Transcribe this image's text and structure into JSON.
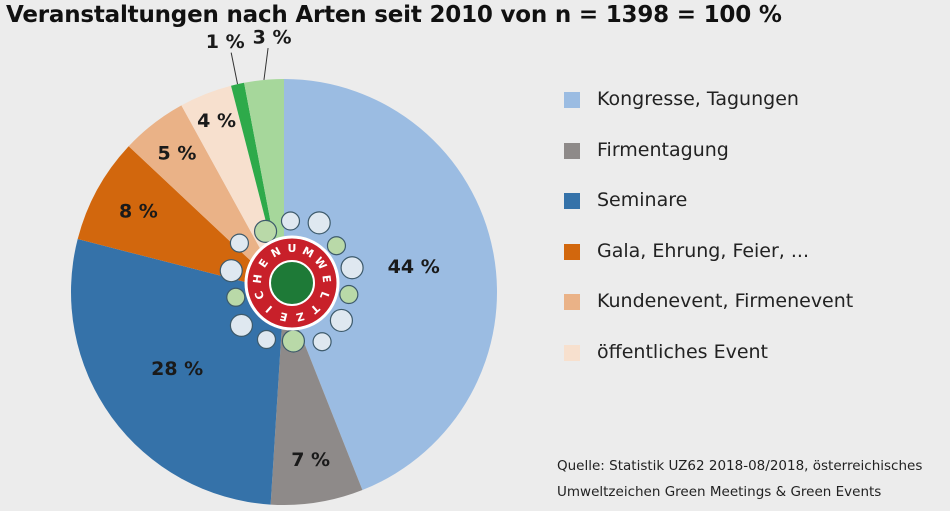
{
  "chart_data": {
    "type": "pie",
    "title": "Veranstaltungen nach Arten seit 2010 von n = 1398 = 100 %",
    "slices": [
      {
        "name": "Kongresse, Tagungen",
        "value": 44,
        "label": "44 %",
        "color": "#9bbce2"
      },
      {
        "name": "Firmentagung",
        "value": 7,
        "label": "7 %",
        "color": "#8e8a89"
      },
      {
        "name": "Seminare",
        "value": 28,
        "label": "28 %",
        "color": "#3572a9"
      },
      {
        "name": "Gala, Ehrung, Feier, ...",
        "value": 8,
        "label": "8 %",
        "color": "#d2670d"
      },
      {
        "name": "Kundenevent, Firmenevent",
        "value": 5,
        "label": "5 %",
        "color": "#eab287"
      },
      {
        "name": "öffentliches Event",
        "value": 4,
        "label": "4 %",
        "color": "#f7e0ce"
      },
      {
        "name": "",
        "value": 1,
        "label": "1 %",
        "color": "#2eaa4a"
      },
      {
        "name": "",
        "value": 3,
        "label": "3 %",
        "color": "#a6d79b"
      }
    ],
    "legend": [
      "Kongresse, Tagungen",
      "Firmentagung",
      "Seminare",
      "Gala, Ehrung, Feier, ...",
      "Kundenevent, Firmenevent",
      "öffentliches Event"
    ],
    "legend_position": "right",
    "source": [
      "Quelle: Statistik UZ62 2018-08/2018, österreichisches",
      "Umweltzeichen Green Meetings & Green Events"
    ]
  },
  "logo": {
    "text": "UMWELTZEICHEN",
    "colors": {
      "ring": "#c8202a",
      "center": "#1e7a37",
      "border": "#ffffff"
    }
  }
}
